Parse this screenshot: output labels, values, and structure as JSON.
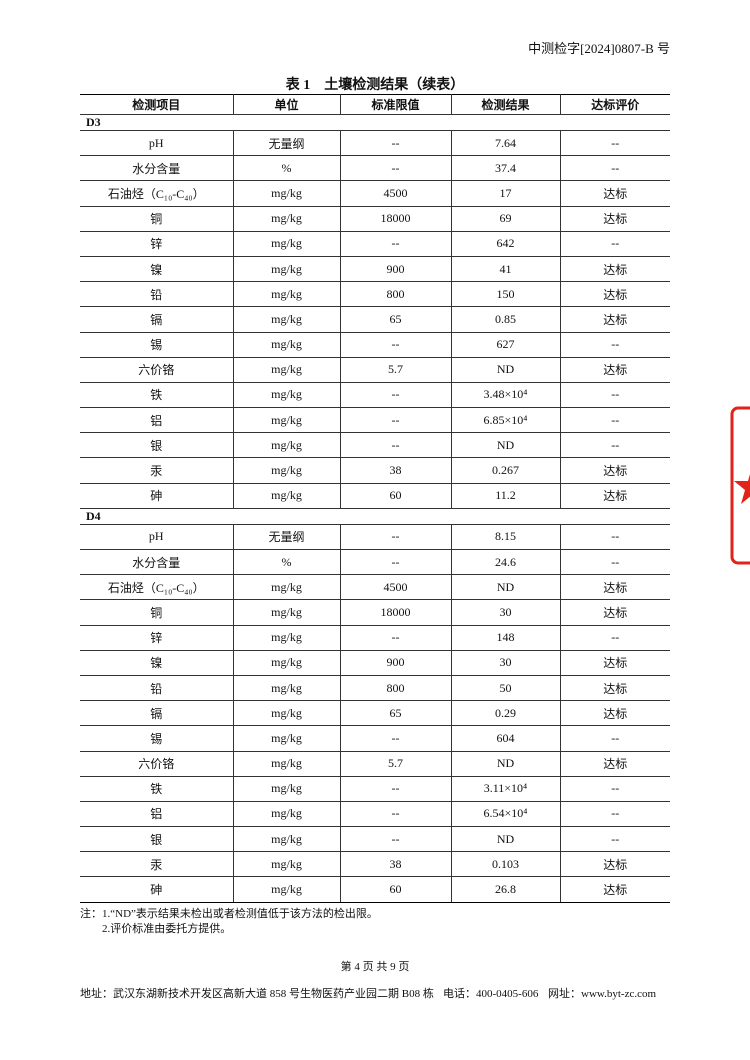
{
  "header": {
    "report_no": "中测检字[2024]0807-B 号"
  },
  "table": {
    "title": "表 1　土壤检测结果（续表）",
    "columns": [
      "检测项目",
      "单位",
      "标准限值",
      "检测结果",
      "达标评价"
    ],
    "sections": [
      {
        "label": "D3",
        "rows": [
          [
            "pH",
            "无量纲",
            "--",
            "7.64",
            "--"
          ],
          [
            "水分含量",
            "%",
            "--",
            "37.4",
            "--"
          ],
          [
            "石油烃（C₁₀-C₄₀）",
            "mg/kg",
            "4500",
            "17",
            "达标"
          ],
          [
            "铜",
            "mg/kg",
            "18000",
            "69",
            "达标"
          ],
          [
            "锌",
            "mg/kg",
            "--",
            "642",
            "--"
          ],
          [
            "镍",
            "mg/kg",
            "900",
            "41",
            "达标"
          ],
          [
            "铅",
            "mg/kg",
            "800",
            "150",
            "达标"
          ],
          [
            "镉",
            "mg/kg",
            "65",
            "0.85",
            "达标"
          ],
          [
            "锡",
            "mg/kg",
            "--",
            "627",
            "--"
          ],
          [
            "六价铬",
            "mg/kg",
            "5.7",
            "ND",
            "达标"
          ],
          [
            "铁",
            "mg/kg",
            "--",
            "3.48×10⁴",
            "--"
          ],
          [
            "铝",
            "mg/kg",
            "--",
            "6.85×10⁴",
            "--"
          ],
          [
            "银",
            "mg/kg",
            "--",
            "ND",
            "--"
          ],
          [
            "汞",
            "mg/kg",
            "38",
            "0.267",
            "达标"
          ],
          [
            "砷",
            "mg/kg",
            "60",
            "11.2",
            "达标"
          ]
        ]
      },
      {
        "label": "D4",
        "rows": [
          [
            "pH",
            "无量纲",
            "--",
            "8.15",
            "--"
          ],
          [
            "水分含量",
            "%",
            "--",
            "24.6",
            "--"
          ],
          [
            "石油烃（C₁₀-C₄₀）",
            "mg/kg",
            "4500",
            "ND",
            "达标"
          ],
          [
            "铜",
            "mg/kg",
            "18000",
            "30",
            "达标"
          ],
          [
            "锌",
            "mg/kg",
            "--",
            "148",
            "--"
          ],
          [
            "镍",
            "mg/kg",
            "900",
            "30",
            "达标"
          ],
          [
            "铅",
            "mg/kg",
            "800",
            "50",
            "达标"
          ],
          [
            "镉",
            "mg/kg",
            "65",
            "0.29",
            "达标"
          ],
          [
            "锡",
            "mg/kg",
            "--",
            "604",
            "--"
          ],
          [
            "六价铬",
            "mg/kg",
            "5.7",
            "ND",
            "达标"
          ],
          [
            "铁",
            "mg/kg",
            "--",
            "3.11×10⁴",
            "--"
          ],
          [
            "铝",
            "mg/kg",
            "--",
            "6.54×10⁴",
            "--"
          ],
          [
            "银",
            "mg/kg",
            "--",
            "ND",
            "--"
          ],
          [
            "汞",
            "mg/kg",
            "38",
            "0.103",
            "达标"
          ],
          [
            "砷",
            "mg/kg",
            "60",
            "26.8",
            "达标"
          ]
        ]
      }
    ]
  },
  "notes": [
    "注：1.“ND”表示结果未检出或者检测值低于该方法的检出限。",
    "2.评价标准由委托方提供。"
  ],
  "footer": {
    "page": "第 4 页 共 9 页",
    "address": "地址：武汉东湖新技术开发区高新大道 858 号生物医药产业园二期 B08 栋",
    "phone": "电话：400-0405-606",
    "website": "网址：www.byt-zc.com"
  }
}
